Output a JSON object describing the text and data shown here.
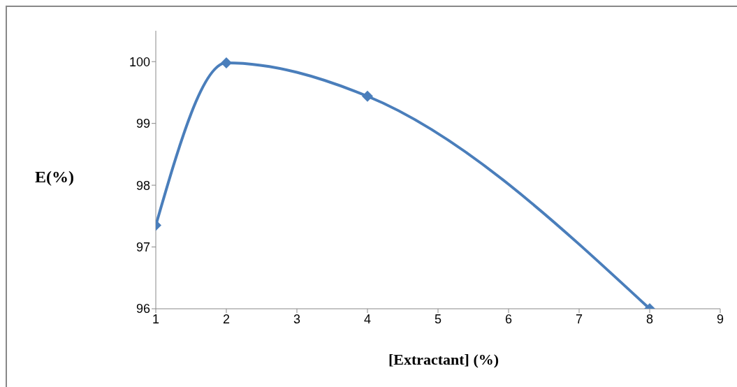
{
  "chart_data": {
    "type": "line",
    "xlabel": "[Extractant] (%)",
    "ylabel": "E(%)",
    "x": [
      1,
      2,
      4,
      8
    ],
    "series": [
      {
        "color": "#4a7ebb",
        "values": [
          97.35,
          99.98,
          99.44,
          96
        ]
      }
    ],
    "xlim": [
      1,
      9
    ],
    "xticks": [
      1,
      2,
      3,
      4,
      5,
      6,
      7,
      8,
      9
    ],
    "ylim": [
      96,
      100.5
    ],
    "yticks": [
      96,
      97,
      98,
      99,
      100
    ],
    "grid": false,
    "legend": false,
    "marker": "diamond",
    "line_style": "solid"
  }
}
